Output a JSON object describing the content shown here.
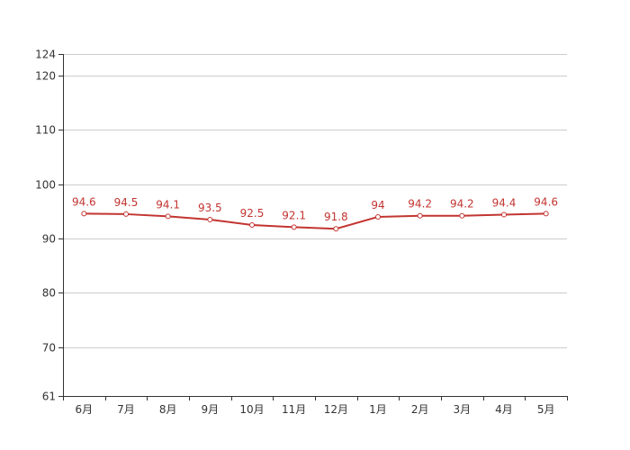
{
  "chart_data": {
    "type": "line",
    "categories": [
      "6月",
      "7月",
      "8月",
      "9月",
      "10月",
      "11月",
      "12月",
      "1月",
      "2月",
      "3月",
      "4月",
      "5月"
    ],
    "series": [
      {
        "values": [
          94.6,
          94.5,
          94.1,
          93.5,
          92.5,
          92.1,
          91.8,
          94,
          94.2,
          94.2,
          94.4,
          94.6
        ]
      }
    ],
    "data_labels": [
      "94.6",
      "94.5",
      "94.1",
      "93.5",
      "92.5",
      "92.1",
      "91.8",
      "94",
      "94.2",
      "94.2",
      "94.4",
      "94.6"
    ],
    "ylim": [
      61,
      124
    ],
    "yticks": [
      61,
      70,
      80,
      90,
      100,
      110,
      120,
      124
    ],
    "ytick_labels": [
      "61",
      "70",
      "80",
      "90",
      "100",
      "110",
      "120",
      "124"
    ],
    "grid": true,
    "legend": "none",
    "line_color": "#c23531"
  }
}
